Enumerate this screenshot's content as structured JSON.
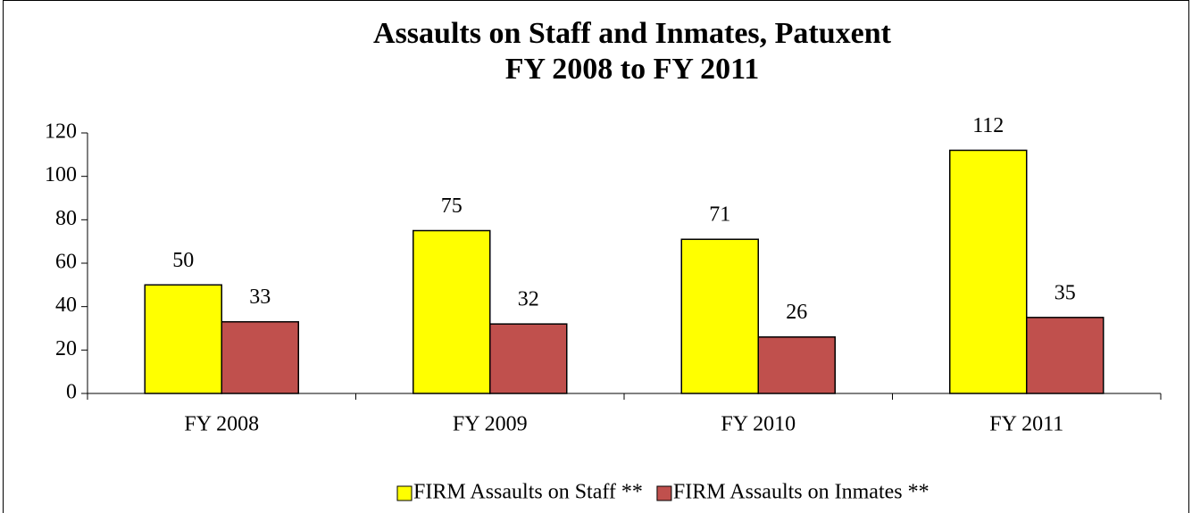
{
  "chart_data": {
    "type": "bar",
    "title": "Assaults on Staff and Inmates, Patuxent",
    "subtitle": "FY 2008 to FY 2011",
    "categories": [
      "FY 2008",
      "FY 2009",
      "FY 2010",
      "FY 2011"
    ],
    "series": [
      {
        "name": "FIRM Assaults on Staff **",
        "color": "#ffff00",
        "values": [
          50,
          75,
          71,
          112
        ]
      },
      {
        "name": "FIRM Assaults on Inmates **",
        "color": "#c0504d",
        "values": [
          33,
          32,
          26,
          35
        ]
      }
    ],
    "ylim": [
      0,
      120
    ],
    "yticks": [
      0,
      20,
      40,
      60,
      80,
      100,
      120
    ],
    "legend": "bottom"
  }
}
